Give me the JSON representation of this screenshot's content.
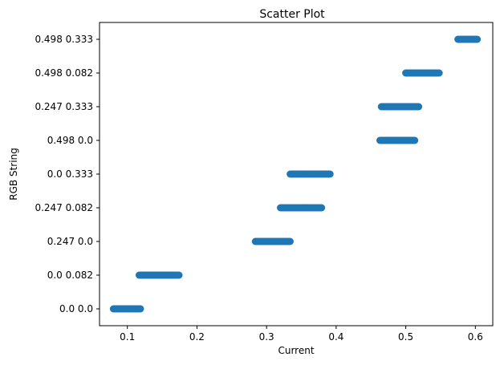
{
  "chart_data": {
    "type": "scatter",
    "title": "Scatter Plot",
    "xlabel": "Current",
    "ylabel": "RGB String",
    "xlim": [
      0.06,
      0.625
    ],
    "x_ticks": [
      0.1,
      0.2,
      0.3,
      0.4,
      0.5,
      0.6
    ],
    "x_tick_labels": [
      "0.1",
      "0.2",
      "0.3",
      "0.4",
      "0.5",
      "0.6"
    ],
    "categories": [
      "0.0 0.0",
      "0.0 0.082",
      "0.247 0.0",
      "0.247 0.082",
      "0.0 0.333",
      "0.498 0.0",
      "0.247 0.333",
      "0.498 0.082",
      "0.498 0.333"
    ],
    "marker_color": "#1f77b4",
    "grid": false,
    "groups": [
      {
        "category": "0.0 0.0",
        "x_min": 0.08,
        "x_max": 0.12
      },
      {
        "category": "0.0 0.082",
        "x_min": 0.117,
        "x_max": 0.176
      },
      {
        "category": "0.247 0.0",
        "x_min": 0.284,
        "x_max": 0.335
      },
      {
        "category": "0.247 0.082",
        "x_min": 0.32,
        "x_max": 0.38
      },
      {
        "category": "0.0 0.333",
        "x_min": 0.334,
        "x_max": 0.392
      },
      {
        "category": "0.498 0.0",
        "x_min": 0.463,
        "x_max": 0.513
      },
      {
        "category": "0.247 0.333",
        "x_min": 0.465,
        "x_max": 0.519
      },
      {
        "category": "0.498 0.082",
        "x_min": 0.5,
        "x_max": 0.548
      },
      {
        "category": "0.498 0.333",
        "x_min": 0.575,
        "x_max": 0.604
      }
    ]
  }
}
